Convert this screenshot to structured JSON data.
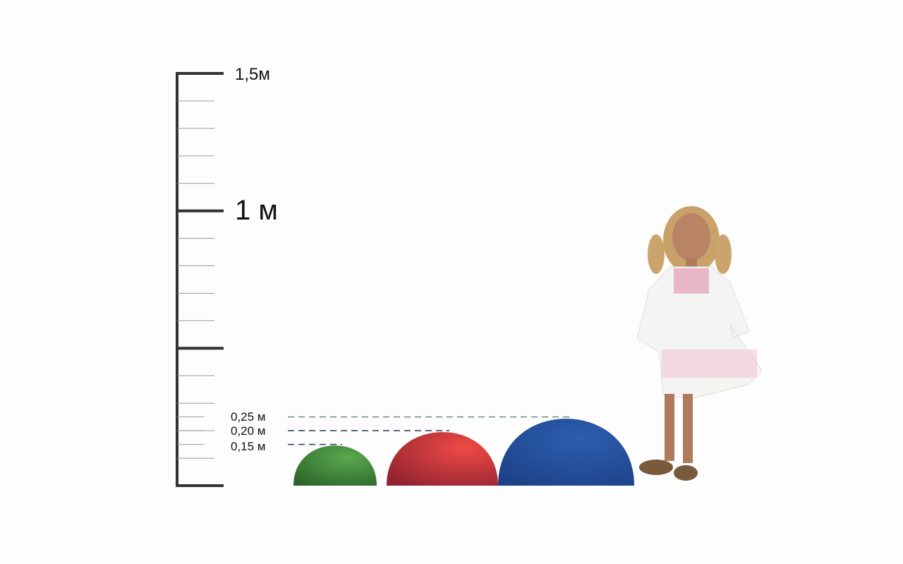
{
  "scale": {
    "labels": {
      "top": "1,5м",
      "middle": "1 м"
    },
    "range_m": [
      0,
      1.5
    ],
    "major_ticks_m": [
      0,
      0.5,
      1.0,
      1.5
    ],
    "minor_tick_step_m": 0.1
  },
  "domes": [
    {
      "label": "0,15 м",
      "height_m": 0.15,
      "color": "#3f8a3a"
    },
    {
      "label": "0,20 м",
      "height_m": 0.2,
      "color": "#d9393b"
    },
    {
      "label": "0,25 м",
      "height_m": 0.25,
      "color": "#234f9c"
    }
  ],
  "figure": "child-standing"
}
